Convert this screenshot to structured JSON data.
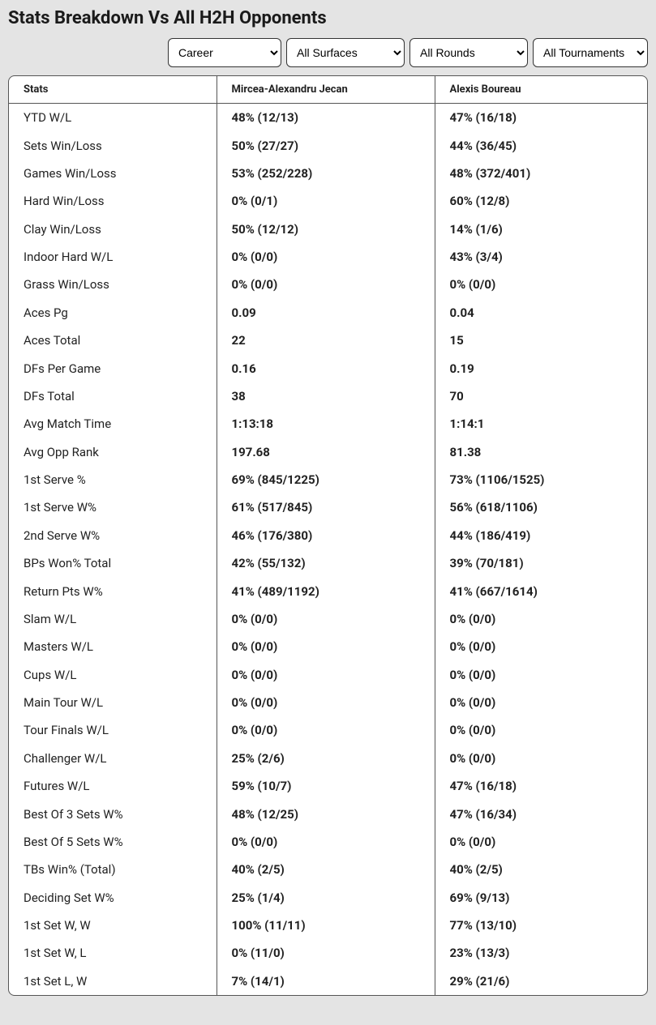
{
  "title": "Stats Breakdown Vs All H2H Opponents",
  "filters": {
    "career": "Career",
    "surface": "All Surfaces",
    "round": "All Rounds",
    "tourn": "All Tournaments"
  },
  "table": {
    "columns": [
      "Stats",
      "Mircea-Alexandru Jecan",
      "Alexis Boureau"
    ],
    "rows": [
      [
        "YTD W/L",
        "48% (12/13)",
        "47% (16/18)"
      ],
      [
        "Sets Win/Loss",
        "50% (27/27)",
        "44% (36/45)"
      ],
      [
        "Games Win/Loss",
        "53% (252/228)",
        "48% (372/401)"
      ],
      [
        "Hard Win/Loss",
        "0% (0/1)",
        "60% (12/8)"
      ],
      [
        "Clay Win/Loss",
        "50% (12/12)",
        "14% (1/6)"
      ],
      [
        "Indoor Hard W/L",
        "0% (0/0)",
        "43% (3/4)"
      ],
      [
        "Grass Win/Loss",
        "0% (0/0)",
        "0% (0/0)"
      ],
      [
        "Aces Pg",
        "0.09",
        "0.04"
      ],
      [
        "Aces Total",
        "22",
        "15"
      ],
      [
        "DFs Per Game",
        "0.16",
        "0.19"
      ],
      [
        "DFs Total",
        "38",
        "70"
      ],
      [
        "Avg Match Time",
        "1:13:18",
        "1:14:1"
      ],
      [
        "Avg Opp Rank",
        "197.68",
        "81.38"
      ],
      [
        "1st Serve %",
        "69% (845/1225)",
        "73% (1106/1525)"
      ],
      [
        "1st Serve W%",
        "61% (517/845)",
        "56% (618/1106)"
      ],
      [
        "2nd Serve W%",
        "46% (176/380)",
        "44% (186/419)"
      ],
      [
        "BPs Won% Total",
        "42% (55/132)",
        "39% (70/181)"
      ],
      [
        "Return Pts W%",
        "41% (489/1192)",
        "41% (667/1614)"
      ],
      [
        "Slam W/L",
        "0% (0/0)",
        "0% (0/0)"
      ],
      [
        "Masters W/L",
        "0% (0/0)",
        "0% (0/0)"
      ],
      [
        "Cups W/L",
        "0% (0/0)",
        "0% (0/0)"
      ],
      [
        "Main Tour W/L",
        "0% (0/0)",
        "0% (0/0)"
      ],
      [
        "Tour Finals W/L",
        "0% (0/0)",
        "0% (0/0)"
      ],
      [
        "Challenger W/L",
        "25% (2/6)",
        "0% (0/0)"
      ],
      [
        "Futures W/L",
        "59% (10/7)",
        "47% (16/18)"
      ],
      [
        "Best Of 3 Sets W%",
        "48% (12/25)",
        "47% (16/34)"
      ],
      [
        "Best Of 5 Sets W%",
        "0% (0/0)",
        "0% (0/0)"
      ],
      [
        "TBs Win% (Total)",
        "40% (2/5)",
        "40% (2/5)"
      ],
      [
        "Deciding Set W%",
        "25% (1/4)",
        "69% (9/13)"
      ],
      [
        "1st Set W, W",
        "100% (11/11)",
        "77% (13/10)"
      ],
      [
        "1st Set W, L",
        "0% (11/0)",
        "23% (13/3)"
      ],
      [
        "1st Set L, W",
        "7% (14/1)",
        "29% (21/6)"
      ]
    ]
  }
}
